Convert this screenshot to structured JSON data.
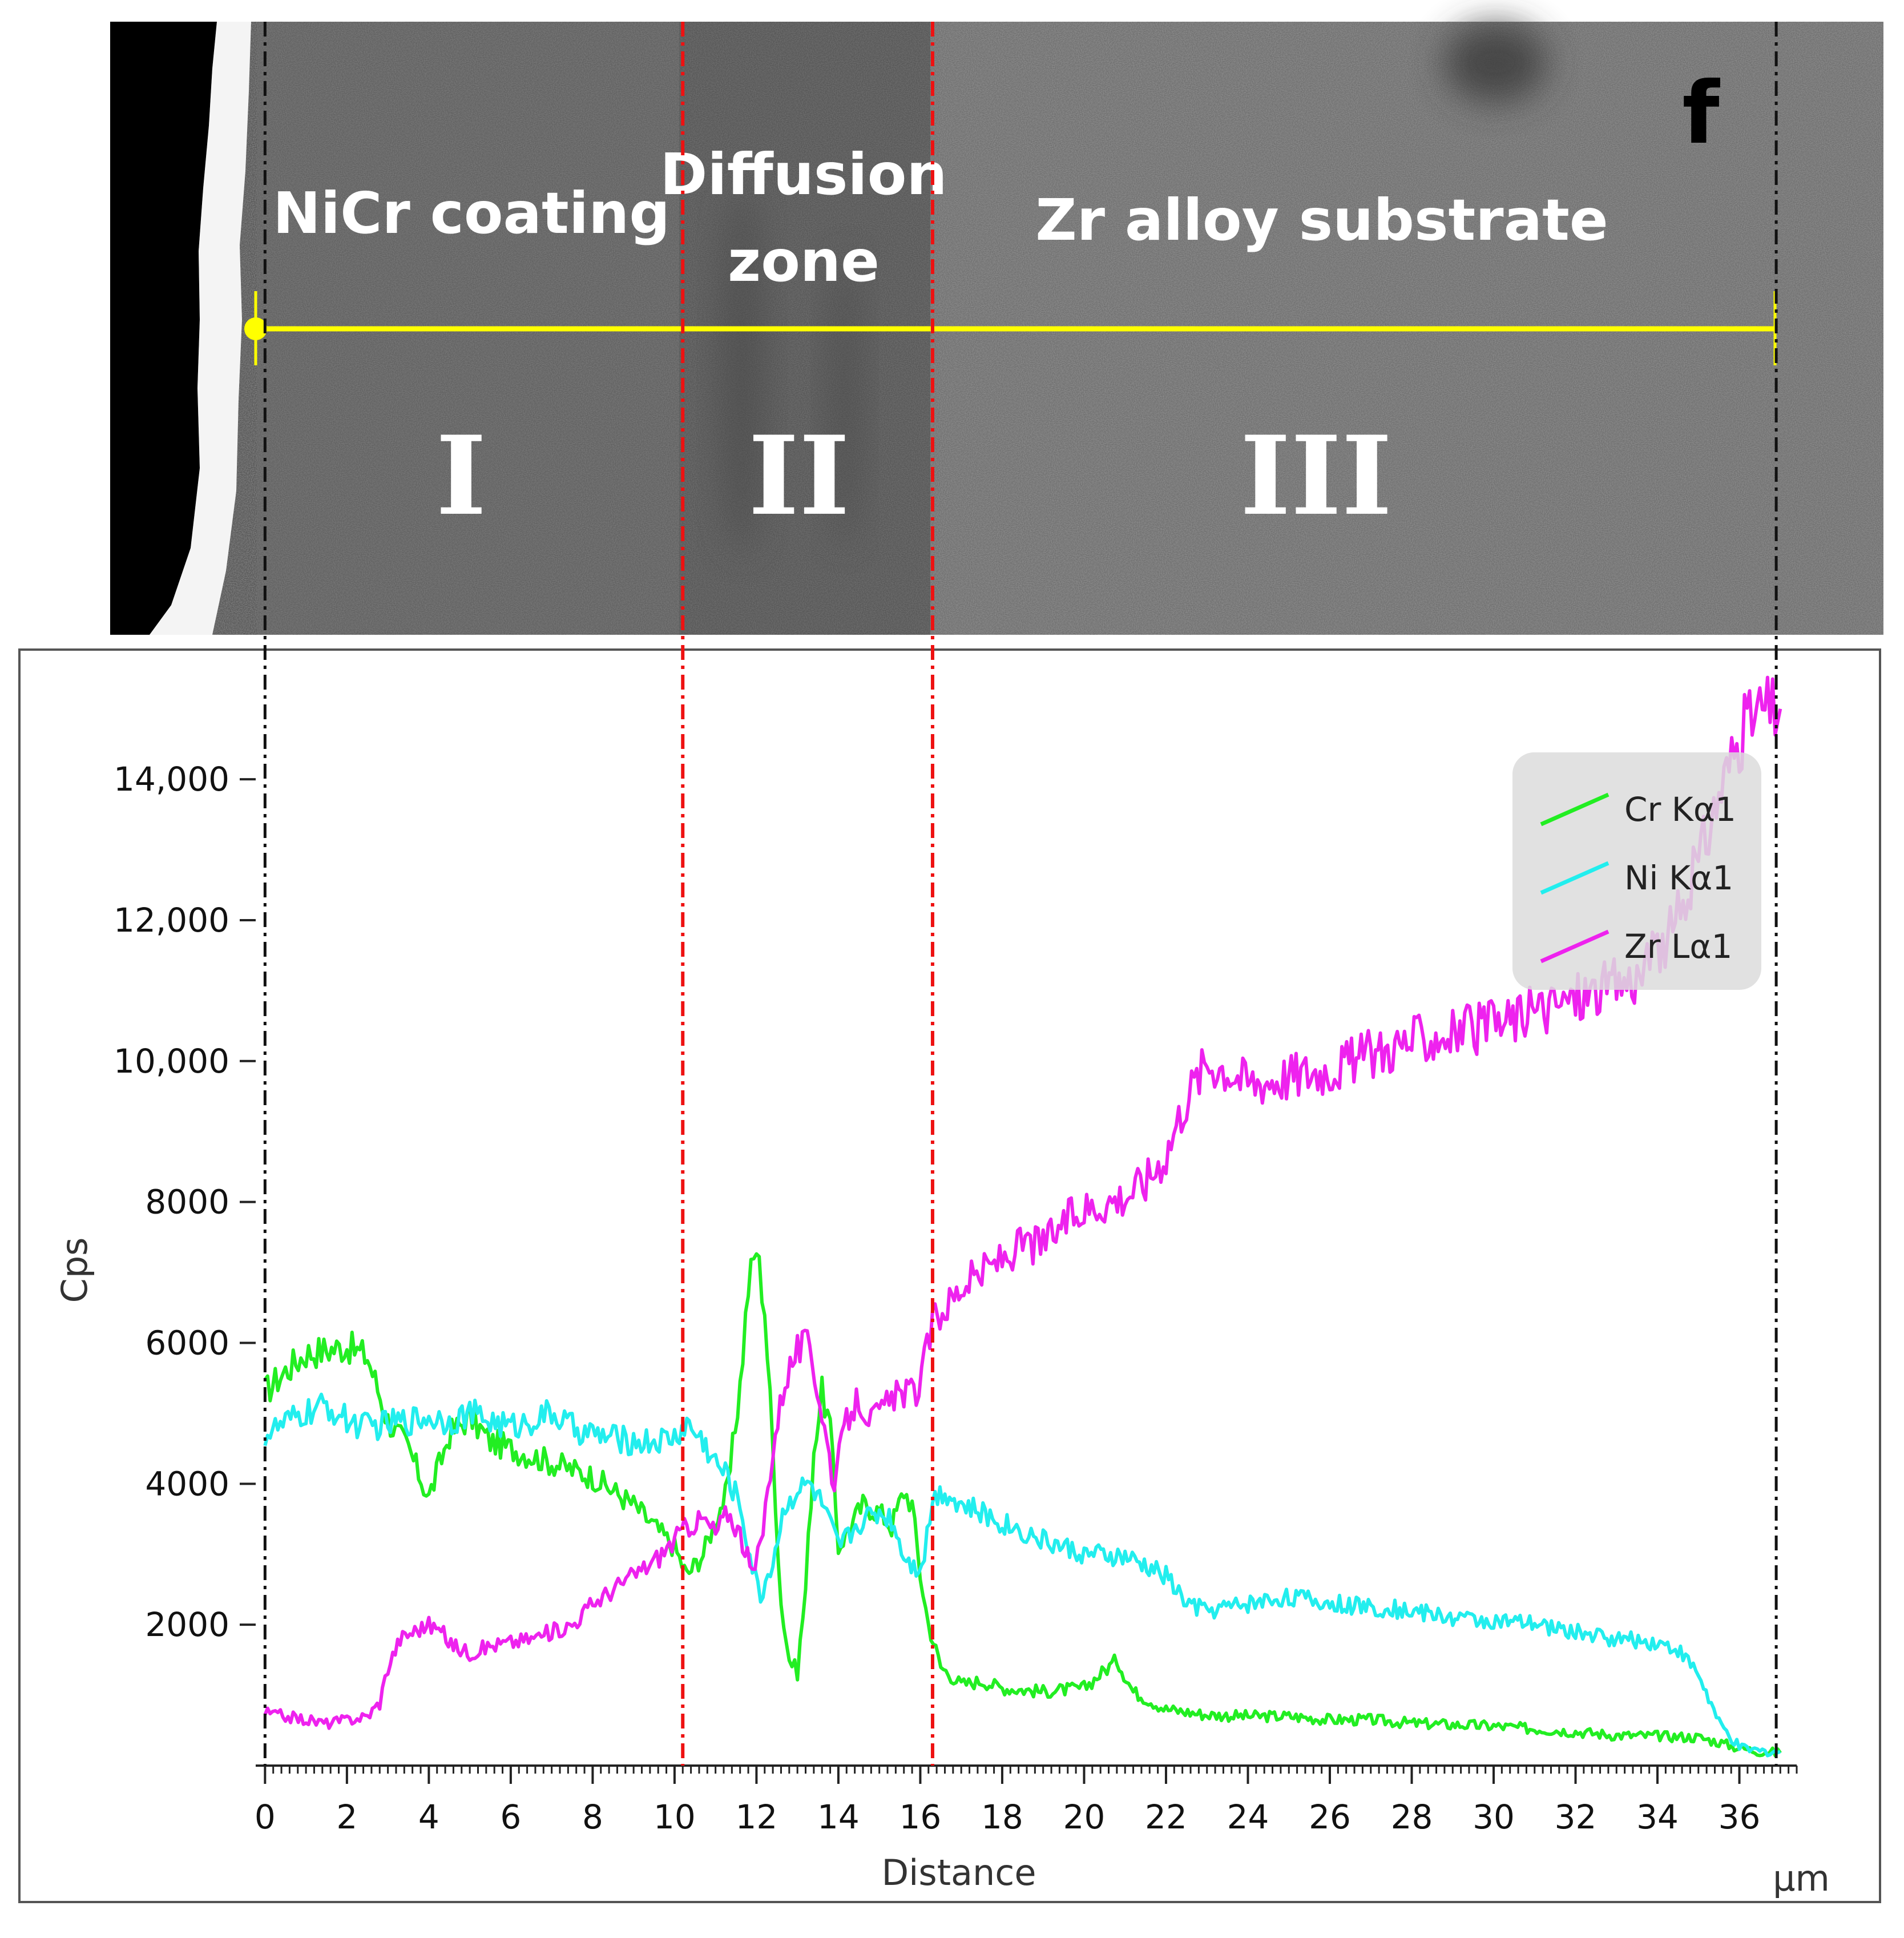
{
  "figure": {
    "panel_letter": "f",
    "region_labels": {
      "coating": "NiCr coating",
      "diffusion_line1": "Diffusion",
      "diffusion_line2": "zone",
      "substrate": "Zr alloy substrate"
    },
    "roman_numerals": [
      "I",
      "II",
      "III"
    ]
  },
  "colors": {
    "cr": "#22ee22",
    "ni": "#22eeee",
    "zr": "#ee22ee",
    "scan_line": "#ffff00",
    "boundary": "#ee1111",
    "edge": "#111111"
  },
  "chart_data": {
    "type": "line",
    "title": "",
    "xlabel": "Distance",
    "xunit": "µm",
    "ylabel": "Cps",
    "xlim": [
      -0.2,
      37.4
    ],
    "ylim": [
      0,
      15500
    ],
    "x_ticks": [
      0,
      2,
      4,
      6,
      8,
      10,
      12,
      14,
      16,
      18,
      20,
      22,
      24,
      26,
      28,
      30,
      32,
      34,
      36
    ],
    "y_ticks": [
      2000,
      4000,
      6000,
      8000,
      10000,
      12000,
      14000
    ],
    "y_tick_labels": [
      "2000",
      "4000",
      "6000",
      "8000",
      "10,000",
      "12,000",
      "14,000"
    ],
    "boundaries_um": [
      10.2,
      16.3
    ],
    "edges_um": [
      0,
      36.9
    ],
    "legend": [
      "Cr Kα1",
      "Ni Kα1",
      "Zr Lα1"
    ],
    "series": [
      {
        "name": "Cr Kα1",
        "color": "#22ee22",
        "x": [
          0,
          0.5,
          1,
          1.5,
          2,
          2.5,
          3,
          3.5,
          4,
          4.5,
          5,
          5.5,
          6,
          6.5,
          7,
          7.5,
          8,
          8.5,
          9,
          9.5,
          10,
          10.3,
          10.7,
          11,
          11.3,
          11.6,
          11.8,
          12,
          12.2,
          12.4,
          12.6,
          12.8,
          13,
          13.2,
          13.4,
          13.6,
          13.8,
          14,
          14.3,
          14.6,
          15,
          15.3,
          15.6,
          15.8,
          16,
          16.2,
          16.5,
          17,
          17.5,
          18,
          19,
          20,
          20.5,
          20.8,
          21.2,
          22,
          23,
          24,
          25,
          26,
          27,
          28,
          29,
          30,
          31,
          32,
          33,
          34,
          35,
          35.5,
          36,
          36.5,
          37
        ],
        "values": [
          5300,
          5600,
          5850,
          5900,
          5950,
          5800,
          4900,
          4500,
          3800,
          4700,
          4950,
          4600,
          4500,
          4400,
          4300,
          4200,
          4100,
          3900,
          3700,
          3400,
          3100,
          2700,
          3000,
          3500,
          3900,
          5400,
          6800,
          7350,
          6500,
          4500,
          2300,
          1500,
          1350,
          2500,
          4500,
          5300,
          4800,
          3100,
          3400,
          3700,
          3600,
          3400,
          3900,
          3700,
          2700,
          2000,
          1400,
          1150,
          1200,
          1100,
          1050,
          1100,
          1350,
          1500,
          1050,
          800,
          720,
          700,
          700,
          650,
          650,
          600,
          580,
          560,
          520,
          480,
          430,
          420,
          400,
          330,
          250,
          200,
          180
        ]
      },
      {
        "name": "Ni Kα1",
        "color": "#22eeee",
        "x": [
          0,
          0.5,
          1,
          1.5,
          2,
          2.5,
          3,
          3.5,
          4,
          4.5,
          5,
          5.5,
          6,
          6.5,
          7,
          7.5,
          8,
          8.5,
          9,
          9.5,
          10,
          10.3,
          10.7,
          11,
          11.3,
          11.6,
          11.9,
          12.1,
          12.4,
          12.7,
          13,
          13.3,
          13.6,
          14,
          14.3,
          14.6,
          15,
          15.3,
          15.6,
          15.9,
          16.1,
          16.3,
          16.6,
          17,
          18,
          19,
          20,
          21,
          22,
          22.5,
          23,
          24,
          25,
          26,
          27,
          28,
          29,
          30,
          31,
          32,
          33,
          34,
          34.5,
          35,
          35.5,
          36,
          36.5,
          37
        ],
        "values": [
          4700,
          4850,
          5000,
          5100,
          4900,
          4800,
          4850,
          4900,
          4950,
          4900,
          5000,
          4900,
          4800,
          4900,
          5000,
          4800,
          4700,
          4650,
          4600,
          4600,
          4650,
          4850,
          4600,
          4300,
          4100,
          3700,
          2800,
          2400,
          2900,
          3700,
          3900,
          4000,
          3700,
          3100,
          3300,
          3500,
          3600,
          3500,
          3000,
          2800,
          3000,
          3800,
          3900,
          3700,
          3450,
          3200,
          3000,
          2950,
          2700,
          2300,
          2200,
          2300,
          2400,
          2300,
          2250,
          2200,
          2100,
          2050,
          2000,
          1900,
          1800,
          1750,
          1650,
          1300,
          600,
          250,
          200,
          200
        ]
      },
      {
        "name": "Zr Lα1",
        "color": "#ee22ee",
        "x": [
          0,
          0.5,
          1,
          1.5,
          2,
          2.5,
          2.8,
          3,
          3.3,
          3.6,
          4,
          4.3,
          4.6,
          5,
          5.5,
          6,
          6.5,
          7,
          7.5,
          8,
          8.5,
          9,
          9.5,
          10,
          10.3,
          10.7,
          11,
          11.3,
          11.6,
          11.9,
          12.1,
          12.4,
          12.7,
          13,
          13.3,
          13.6,
          13.9,
          14.2,
          14.5,
          14.8,
          15,
          15.3,
          15.6,
          15.9,
          16.1,
          16.3,
          16.6,
          17,
          17.5,
          18,
          18.5,
          19,
          19.5,
          20,
          20.5,
          21,
          21.5,
          22,
          22.5,
          23,
          23.5,
          24,
          25,
          26,
          27,
          28,
          29,
          30,
          31,
          32,
          33,
          33.5,
          34,
          34.5,
          35,
          35.5,
          36,
          36.5,
          37
        ],
        "values": [
          750,
          700,
          650,
          600,
          650,
          700,
          900,
          1400,
          1800,
          1900,
          2000,
          1900,
          1700,
          1600,
          1700,
          1750,
          1800,
          1900,
          2000,
          2300,
          2500,
          2700,
          2900,
          3200,
          3400,
          3500,
          3300,
          3600,
          3300,
          2700,
          3100,
          4500,
          5500,
          5900,
          6000,
          5000,
          4000,
          4900,
          5200,
          4900,
          5000,
          5200,
          5300,
          5300,
          5700,
          6300,
          6500,
          6800,
          7000,
          7200,
          7400,
          7400,
          7700,
          7900,
          8000,
          8100,
          8300,
          8700,
          9500,
          10000,
          9900,
          9700,
          9800,
          9900,
          10100,
          10300,
          10400,
          10500,
          10700,
          10900,
          11100,
          11200,
          11500,
          12000,
          12800,
          13800,
          14600,
          15000,
          15000
        ]
      }
    ]
  }
}
